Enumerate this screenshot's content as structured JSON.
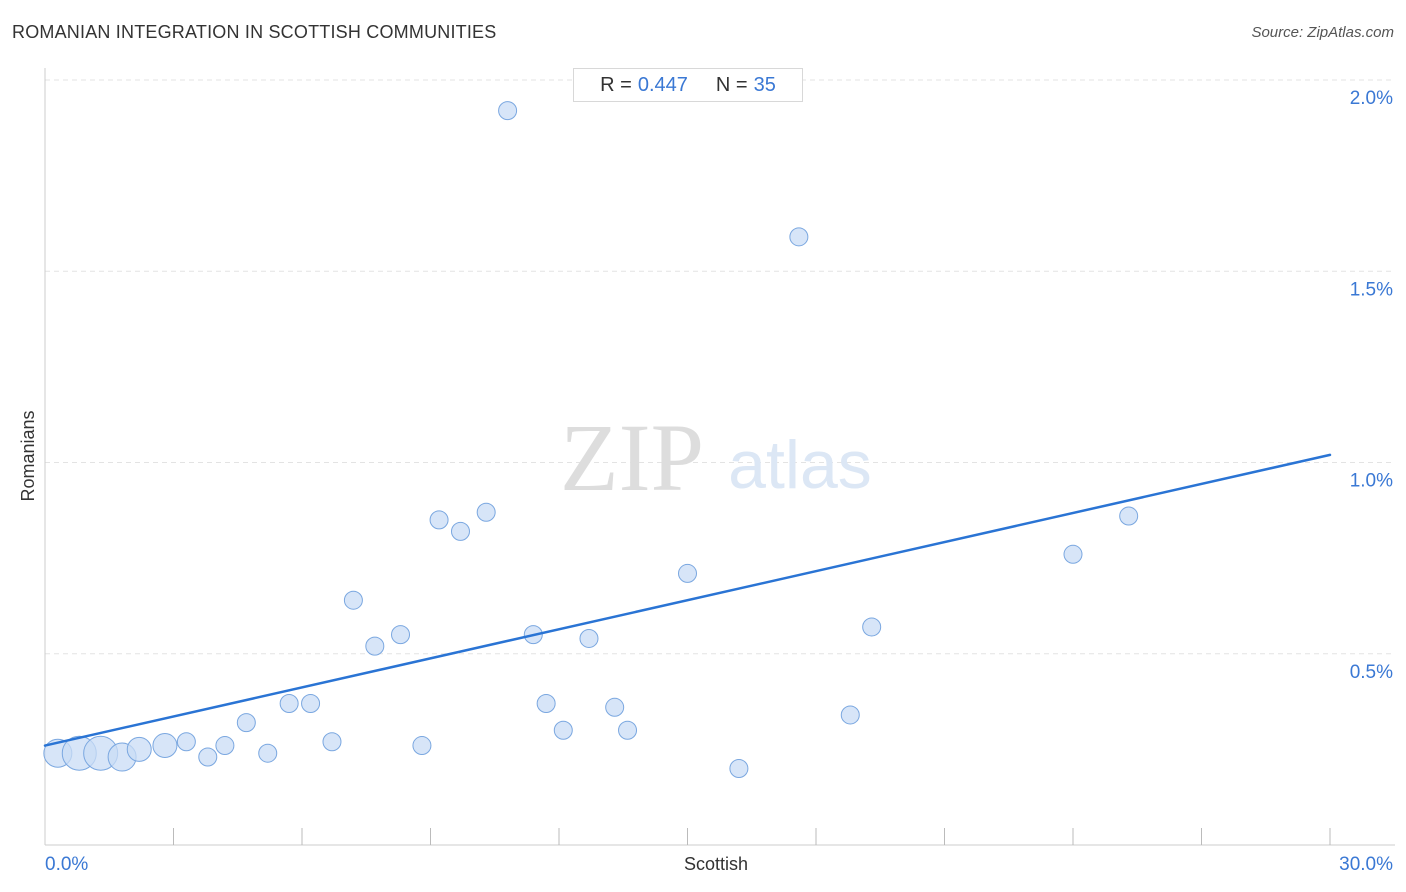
{
  "header": {
    "title": "ROMANIAN INTEGRATION IN SCOTTISH COMMUNITIES",
    "source": "Source: ZipAtlas.com"
  },
  "stats": {
    "r_label": "R =",
    "r_value": "0.447",
    "n_label": "N =",
    "n_value": "35"
  },
  "watermark": {
    "zip": "ZIP",
    "atlas": "atlas"
  },
  "colors": {
    "point_fill": "#c9dcf5",
    "point_stroke": "#7aa7e0",
    "trend_line": "#2a74d4",
    "tick_label": "#3a78d4",
    "grid": "#e3e3e3"
  },
  "chart_data": {
    "type": "scatter",
    "xlabel": "Scottish",
    "ylabel": "Romanians",
    "xlim": [
      0,
      30
    ],
    "ylim": [
      0,
      2.0
    ],
    "x_tick_labels": [
      {
        "value": 0,
        "label": "0.0%"
      },
      {
        "value": 30,
        "label": "30.0%"
      }
    ],
    "y_tick_labels": [
      {
        "value": 0.5,
        "label": "0.5%"
      },
      {
        "value": 1.0,
        "label": "1.0%"
      },
      {
        "value": 1.5,
        "label": "1.5%"
      },
      {
        "value": 2.0,
        "label": "2.0%"
      }
    ],
    "grid": true,
    "trend_line": {
      "x": [
        0,
        30
      ],
      "y": [
        0.26,
        1.02
      ]
    },
    "points": [
      {
        "x": 0.3,
        "y": 0.24,
        "size": 3
      },
      {
        "x": 0.8,
        "y": 0.24,
        "size": 4
      },
      {
        "x": 1.3,
        "y": 0.24,
        "size": 4
      },
      {
        "x": 1.8,
        "y": 0.23,
        "size": 3
      },
      {
        "x": 2.2,
        "y": 0.25,
        "size": 2
      },
      {
        "x": 2.8,
        "y": 0.26,
        "size": 2
      },
      {
        "x": 3.3,
        "y": 0.27,
        "size": 1
      },
      {
        "x": 3.8,
        "y": 0.23,
        "size": 1
      },
      {
        "x": 4.2,
        "y": 0.26,
        "size": 1
      },
      {
        "x": 4.7,
        "y": 0.32,
        "size": 1
      },
      {
        "x": 5.2,
        "y": 0.24,
        "size": 1
      },
      {
        "x": 5.7,
        "y": 0.37,
        "size": 1
      },
      {
        "x": 6.2,
        "y": 0.37,
        "size": 1
      },
      {
        "x": 6.7,
        "y": 0.27,
        "size": 1
      },
      {
        "x": 7.2,
        "y": 0.64,
        "size": 1
      },
      {
        "x": 7.7,
        "y": 0.52,
        "size": 1
      },
      {
        "x": 8.3,
        "y": 0.55,
        "size": 1
      },
      {
        "x": 8.8,
        "y": 0.26,
        "size": 1
      },
      {
        "x": 9.2,
        "y": 0.85,
        "size": 1
      },
      {
        "x": 9.7,
        "y": 0.82,
        "size": 1
      },
      {
        "x": 10.3,
        "y": 0.87,
        "size": 1
      },
      {
        "x": 10.8,
        "y": 1.92,
        "size": 1
      },
      {
        "x": 11.4,
        "y": 0.55,
        "size": 1
      },
      {
        "x": 11.7,
        "y": 0.37,
        "size": 1
      },
      {
        "x": 12.1,
        "y": 0.3,
        "size": 1
      },
      {
        "x": 12.7,
        "y": 0.54,
        "size": 1
      },
      {
        "x": 13.3,
        "y": 0.36,
        "size": 1
      },
      {
        "x": 13.6,
        "y": 0.3,
        "size": 1
      },
      {
        "x": 15.0,
        "y": 0.71,
        "size": 1
      },
      {
        "x": 16.2,
        "y": 0.2,
        "size": 1
      },
      {
        "x": 17.6,
        "y": 1.59,
        "size": 1
      },
      {
        "x": 18.8,
        "y": 0.34,
        "size": 1
      },
      {
        "x": 19.3,
        "y": 0.57,
        "size": 1
      },
      {
        "x": 24.0,
        "y": 0.76,
        "size": 1
      },
      {
        "x": 25.3,
        "y": 0.86,
        "size": 1
      }
    ]
  }
}
